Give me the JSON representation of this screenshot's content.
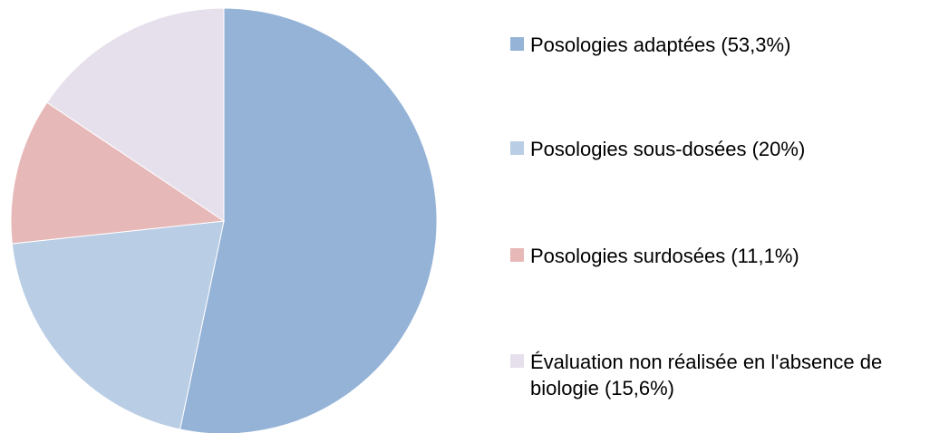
{
  "chart_data": {
    "type": "pie",
    "categories": [
      "Posologies adaptées (53,3%)",
      "Posologies sous-dosées (20%)",
      "Posologies surdosées (11,1%)",
      "Évaluation non réalisée en l'absence de biologie (15,6%)"
    ],
    "values": [
      53.3,
      20,
      11.1,
      15.6
    ],
    "colors": [
      "#95b3d7",
      "#b9cde5",
      "#e6b9b8",
      "#e6e0ec"
    ],
    "legend": "right"
  }
}
